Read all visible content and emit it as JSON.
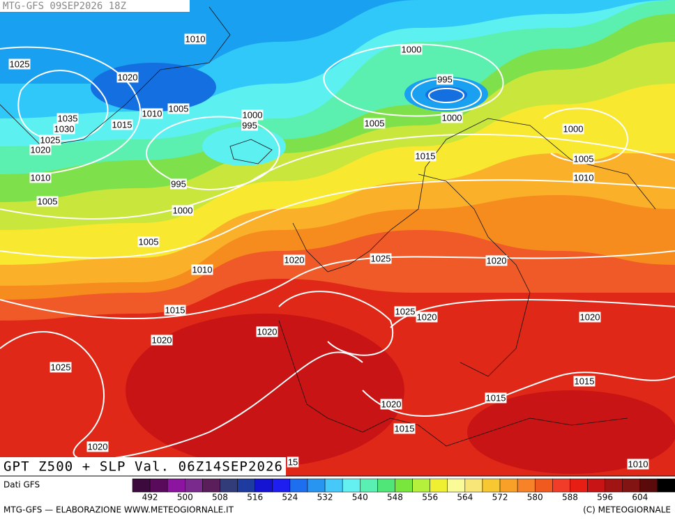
{
  "header": "MTG-GFS 09SEP2026 18Z",
  "isobar_labels": [
    "1010",
    "1000",
    "1025",
    "1020",
    "995",
    "1035",
    "1010",
    "1005",
    "1000",
    "995",
    "1000",
    "1005",
    "1030",
    "1015",
    "1000",
    "1025",
    "1020",
    "1015",
    "1005",
    "1010",
    "995",
    "1010",
    "1005",
    "1000",
    "1005",
    "1020",
    "1025",
    "1020",
    "1010",
    "1015",
    "1025",
    "1020",
    "1020",
    "1020",
    "1020",
    "1025",
    "1015",
    "1015",
    "1020",
    "1015",
    "1020",
    "1010",
    "15"
  ],
  "title": "GPT Z500 + SLP Val. 06Z14SEP2026",
  "source": "Dati GFS",
  "colorbar": {
    "labels": [
      "492",
      "500",
      "508",
      "516",
      "524",
      "532",
      "540",
      "548",
      "556",
      "564",
      "572",
      "580",
      "588",
      "596",
      "604"
    ],
    "colors": [
      "#3c0a3c",
      "#5a0a5a",
      "#8c14a0",
      "#7a2a8c",
      "#5a1e5a",
      "#323c78",
      "#1e3ca0",
      "#1414d2",
      "#1e1ef0",
      "#1e6ef0",
      "#2896f0",
      "#46c8f8",
      "#64f0f0",
      "#5af0b4",
      "#50e678",
      "#78e63c",
      "#b4f03c",
      "#f0f032",
      "#fafa96",
      "#f8e678",
      "#f8c832",
      "#f8a028",
      "#f88228",
      "#f05a1e",
      "#f03c28",
      "#e61e14",
      "#c81414",
      "#a01414",
      "#821414",
      "#5a0a0a",
      "#000000"
    ]
  },
  "footer_left": "MTG-GFS — ELABORAZIONE WWW.METEOGIORNALE.IT",
  "footer_right": "(C) METEOGIORNALE"
}
